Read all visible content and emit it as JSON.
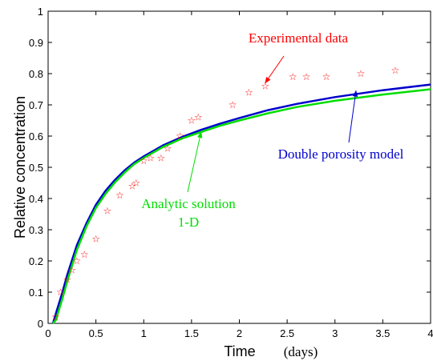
{
  "chart_data": {
    "type": "line",
    "xlabel": "Time",
    "xunit": "(days)",
    "ylabel": "Relative concentration",
    "xlim": [
      0,
      4
    ],
    "ylim": [
      0,
      1
    ],
    "xticks": [
      0,
      0.5,
      1,
      1.5,
      2,
      2.5,
      3,
      3.5,
      4
    ],
    "yticks": [
      0,
      0.1,
      0.2,
      0.3,
      0.4,
      0.5,
      0.6,
      0.7,
      0.8,
      0.9,
      1
    ],
    "grid": false,
    "colors": {
      "experimental": "#ff0000",
      "double_porosity": "#0000cc",
      "analytic": "#00dd00"
    },
    "scatter": {
      "marker": "pentagram",
      "x": [
        0.08,
        0.13,
        0.2,
        0.25,
        0.3,
        0.38,
        0.5,
        0.62,
        0.75,
        0.88,
        0.92,
        1.0,
        1.07,
        1.18,
        1.25,
        1.38,
        1.5,
        1.57,
        1.93,
        2.1,
        2.27,
        2.56,
        2.7,
        2.91,
        3.27,
        3.63
      ],
      "y": [
        0.02,
        0.1,
        0.14,
        0.17,
        0.2,
        0.22,
        0.27,
        0.36,
        0.41,
        0.44,
        0.45,
        0.52,
        0.53,
        0.53,
        0.56,
        0.6,
        0.65,
        0.66,
        0.7,
        0.74,
        0.76,
        0.79,
        0.79,
        0.79,
        0.8,
        0.81
      ]
    },
    "series": [
      {
        "key": "double_porosity",
        "x": [
          0.05,
          0.08,
          0.1,
          0.15,
          0.2,
          0.3,
          0.4,
          0.5,
          0.6,
          0.7,
          0.8,
          0.9,
          1.0,
          1.2,
          1.4,
          1.6,
          1.8,
          2.0,
          2.3,
          2.6,
          3.0,
          3.5,
          4.0
        ],
        "y": [
          0.0,
          0.03,
          0.05,
          0.1,
          0.155,
          0.25,
          0.32,
          0.38,
          0.425,
          0.46,
          0.49,
          0.515,
          0.535,
          0.57,
          0.597,
          0.62,
          0.64,
          0.658,
          0.683,
          0.703,
          0.725,
          0.747,
          0.765
        ]
      },
      {
        "key": "analytic",
        "x": [
          0.05,
          0.08,
          0.1,
          0.15,
          0.2,
          0.3,
          0.4,
          0.5,
          0.6,
          0.7,
          0.8,
          0.9,
          1.0,
          1.2,
          1.4,
          1.6,
          1.8,
          2.0,
          2.3,
          2.6,
          3.0,
          3.5,
          4.0
        ],
        "y": [
          0.0,
          0.01,
          0.03,
          0.08,
          0.135,
          0.235,
          0.31,
          0.37,
          0.415,
          0.452,
          0.483,
          0.51,
          0.53,
          0.565,
          0.592,
          0.613,
          0.633,
          0.65,
          0.673,
          0.693,
          0.713,
          0.733,
          0.75
        ]
      }
    ],
    "annotations": [
      {
        "key": "experimental",
        "lines": [
          "Experimental data"
        ],
        "arrow_to": [
          2.27,
          0.77
        ]
      },
      {
        "key": "double_porosity",
        "lines": [
          "Double porosity model"
        ],
        "arrow_to": [
          3.22,
          0.745
        ]
      },
      {
        "key": "analytic",
        "lines": [
          "Analytic solution",
          "1-D"
        ],
        "arrow_to": [
          1.6,
          0.613
        ]
      }
    ]
  }
}
